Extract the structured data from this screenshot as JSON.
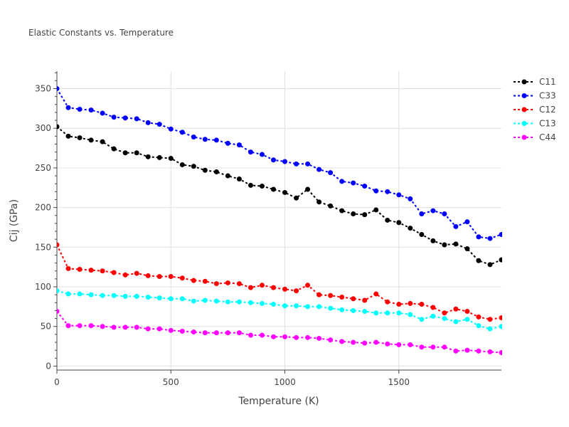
{
  "chart_data": {
    "type": "line",
    "title": "Elastic Constants vs. Temperature",
    "xlabel": "Temperature (K)",
    "ylabel": "Cij (GPa)",
    "xlim": [
      0,
      1950
    ],
    "ylim": [
      -5,
      372
    ],
    "grid": true,
    "legend_position": "top-right",
    "x_ticks": [
      0,
      500,
      1000,
      1500
    ],
    "x_tick_labels": [
      "0",
      "500",
      "1000",
      "1500"
    ],
    "y_ticks": [
      0,
      50,
      100,
      150,
      200,
      250,
      300,
      350
    ],
    "y_tick_labels": [
      "0",
      "50",
      "100",
      "150",
      "200",
      "250",
      "300",
      "350"
    ],
    "x": [
      0,
      50,
      100,
      150,
      200,
      250,
      300,
      350,
      400,
      450,
      500,
      550,
      600,
      650,
      700,
      750,
      800,
      850,
      900,
      950,
      1000,
      1050,
      1100,
      1150,
      1200,
      1250,
      1300,
      1350,
      1400,
      1450,
      1500,
      1550,
      1600,
      1650,
      1700,
      1750,
      1800,
      1850,
      1900,
      1950
    ],
    "series": [
      {
        "name": "C11",
        "color": "#000000",
        "values": [
          302,
          290,
          288,
          285,
          283,
          274,
          269,
          269,
          264,
          263,
          262,
          254,
          252,
          247,
          245,
          240,
          236,
          228,
          227,
          223,
          219,
          212,
          223,
          207,
          202,
          196,
          192,
          191,
          197,
          184,
          181,
          174,
          166,
          158,
          153,
          154,
          148,
          133,
          128,
          134
        ]
      },
      {
        "name": "C33",
        "color": "#0000ff",
        "values": [
          350,
          326,
          324,
          323,
          319,
          314,
          313,
          312,
          307,
          305,
          299,
          295,
          289,
          286,
          285,
          281,
          279,
          270,
          267,
          260,
          258,
          255,
          255,
          248,
          244,
          233,
          231,
          227,
          221,
          220,
          216,
          211,
          192,
          196,
          192,
          176,
          182,
          163,
          161,
          166
        ]
      },
      {
        "name": "C12",
        "color": "#ff0000",
        "values": [
          153,
          123,
          122,
          121,
          120,
          118,
          115,
          117,
          114,
          113,
          113,
          111,
          108,
          107,
          104,
          105,
          104,
          99,
          102,
          99,
          97,
          95,
          102,
          90,
          89,
          87,
          85,
          83,
          91,
          81,
          78,
          79,
          78,
          74,
          67,
          72,
          69,
          62,
          59,
          61
        ]
      },
      {
        "name": "C13",
        "color": "#00ffff",
        "values": [
          95,
          91,
          91,
          90,
          89,
          89,
          88,
          88,
          87,
          86,
          85,
          85,
          82,
          83,
          82,
          81,
          81,
          80,
          79,
          78,
          76,
          76,
          75,
          75,
          73,
          71,
          70,
          69,
          67,
          67,
          67,
          65,
          59,
          63,
          60,
          56,
          59,
          51,
          47,
          50
        ]
      },
      {
        "name": "C44",
        "color": "#ff00ff",
        "values": [
          69,
          51,
          51,
          51,
          50,
          49,
          49,
          49,
          47,
          47,
          45,
          44,
          43,
          42,
          42,
          42,
          42,
          39,
          39,
          37,
          37,
          36,
          36,
          35,
          33,
          31,
          30,
          29,
          30,
          28,
          27,
          27,
          24,
          24,
          24,
          19,
          20,
          19,
          18,
          17
        ]
      }
    ]
  }
}
